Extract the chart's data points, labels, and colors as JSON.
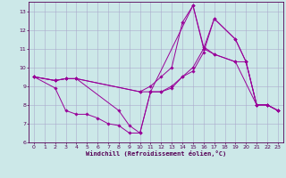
{
  "xlabel": "Windchill (Refroidissement éolien,°C)",
  "bg_color": "#cce8e8",
  "grid_color": "#aaaacc",
  "line_color": "#990099",
  "xlim": [
    -0.5,
    23.5
  ],
  "ylim": [
    6,
    13.5
  ],
  "yticks": [
    6,
    7,
    8,
    9,
    10,
    11,
    12,
    13
  ],
  "xticks": [
    0,
    1,
    2,
    3,
    4,
    5,
    6,
    7,
    8,
    9,
    10,
    11,
    12,
    13,
    14,
    15,
    16,
    17,
    18,
    19,
    20,
    21,
    22,
    23
  ],
  "series": [
    {
      "x": [
        0,
        2,
        3,
        4,
        10,
        11,
        15,
        16,
        17,
        19,
        21,
        22,
        23
      ],
      "y": [
        9.5,
        9.3,
        9.4,
        9.4,
        8.7,
        8.7,
        13.3,
        11.0,
        10.7,
        10.3,
        8.0,
        8.0,
        7.7
      ]
    },
    {
      "x": [
        0,
        2,
        3,
        4,
        10,
        11,
        12,
        13,
        14,
        15,
        16,
        17,
        19,
        20,
        21,
        22,
        23
      ],
      "y": [
        9.5,
        9.3,
        9.4,
        9.4,
        8.7,
        9.0,
        9.5,
        10.0,
        12.4,
        13.3,
        11.1,
        10.7,
        10.3,
        10.3,
        8.0,
        8.0,
        7.7
      ]
    },
    {
      "x": [
        0,
        2,
        3,
        4,
        8,
        9,
        10,
        11,
        12,
        13,
        14,
        15,
        16,
        17,
        19,
        20,
        21,
        22,
        23
      ],
      "y": [
        9.5,
        9.3,
        9.4,
        9.4,
        7.7,
        6.9,
        6.5,
        8.7,
        8.7,
        9.0,
        9.5,
        10.0,
        11.0,
        12.6,
        11.5,
        10.3,
        8.0,
        8.0,
        7.7
      ]
    },
    {
      "x": [
        0,
        2,
        3,
        4,
        5,
        6,
        7,
        8,
        9,
        10,
        11,
        12,
        13,
        14,
        15,
        16,
        17,
        19,
        20,
        21,
        22,
        23
      ],
      "y": [
        9.5,
        8.9,
        7.7,
        7.5,
        7.5,
        7.3,
        7.0,
        6.9,
        6.5,
        6.5,
        8.7,
        8.7,
        8.9,
        9.5,
        9.8,
        10.8,
        12.6,
        11.5,
        10.3,
        8.0,
        8.0,
        7.7
      ]
    }
  ]
}
